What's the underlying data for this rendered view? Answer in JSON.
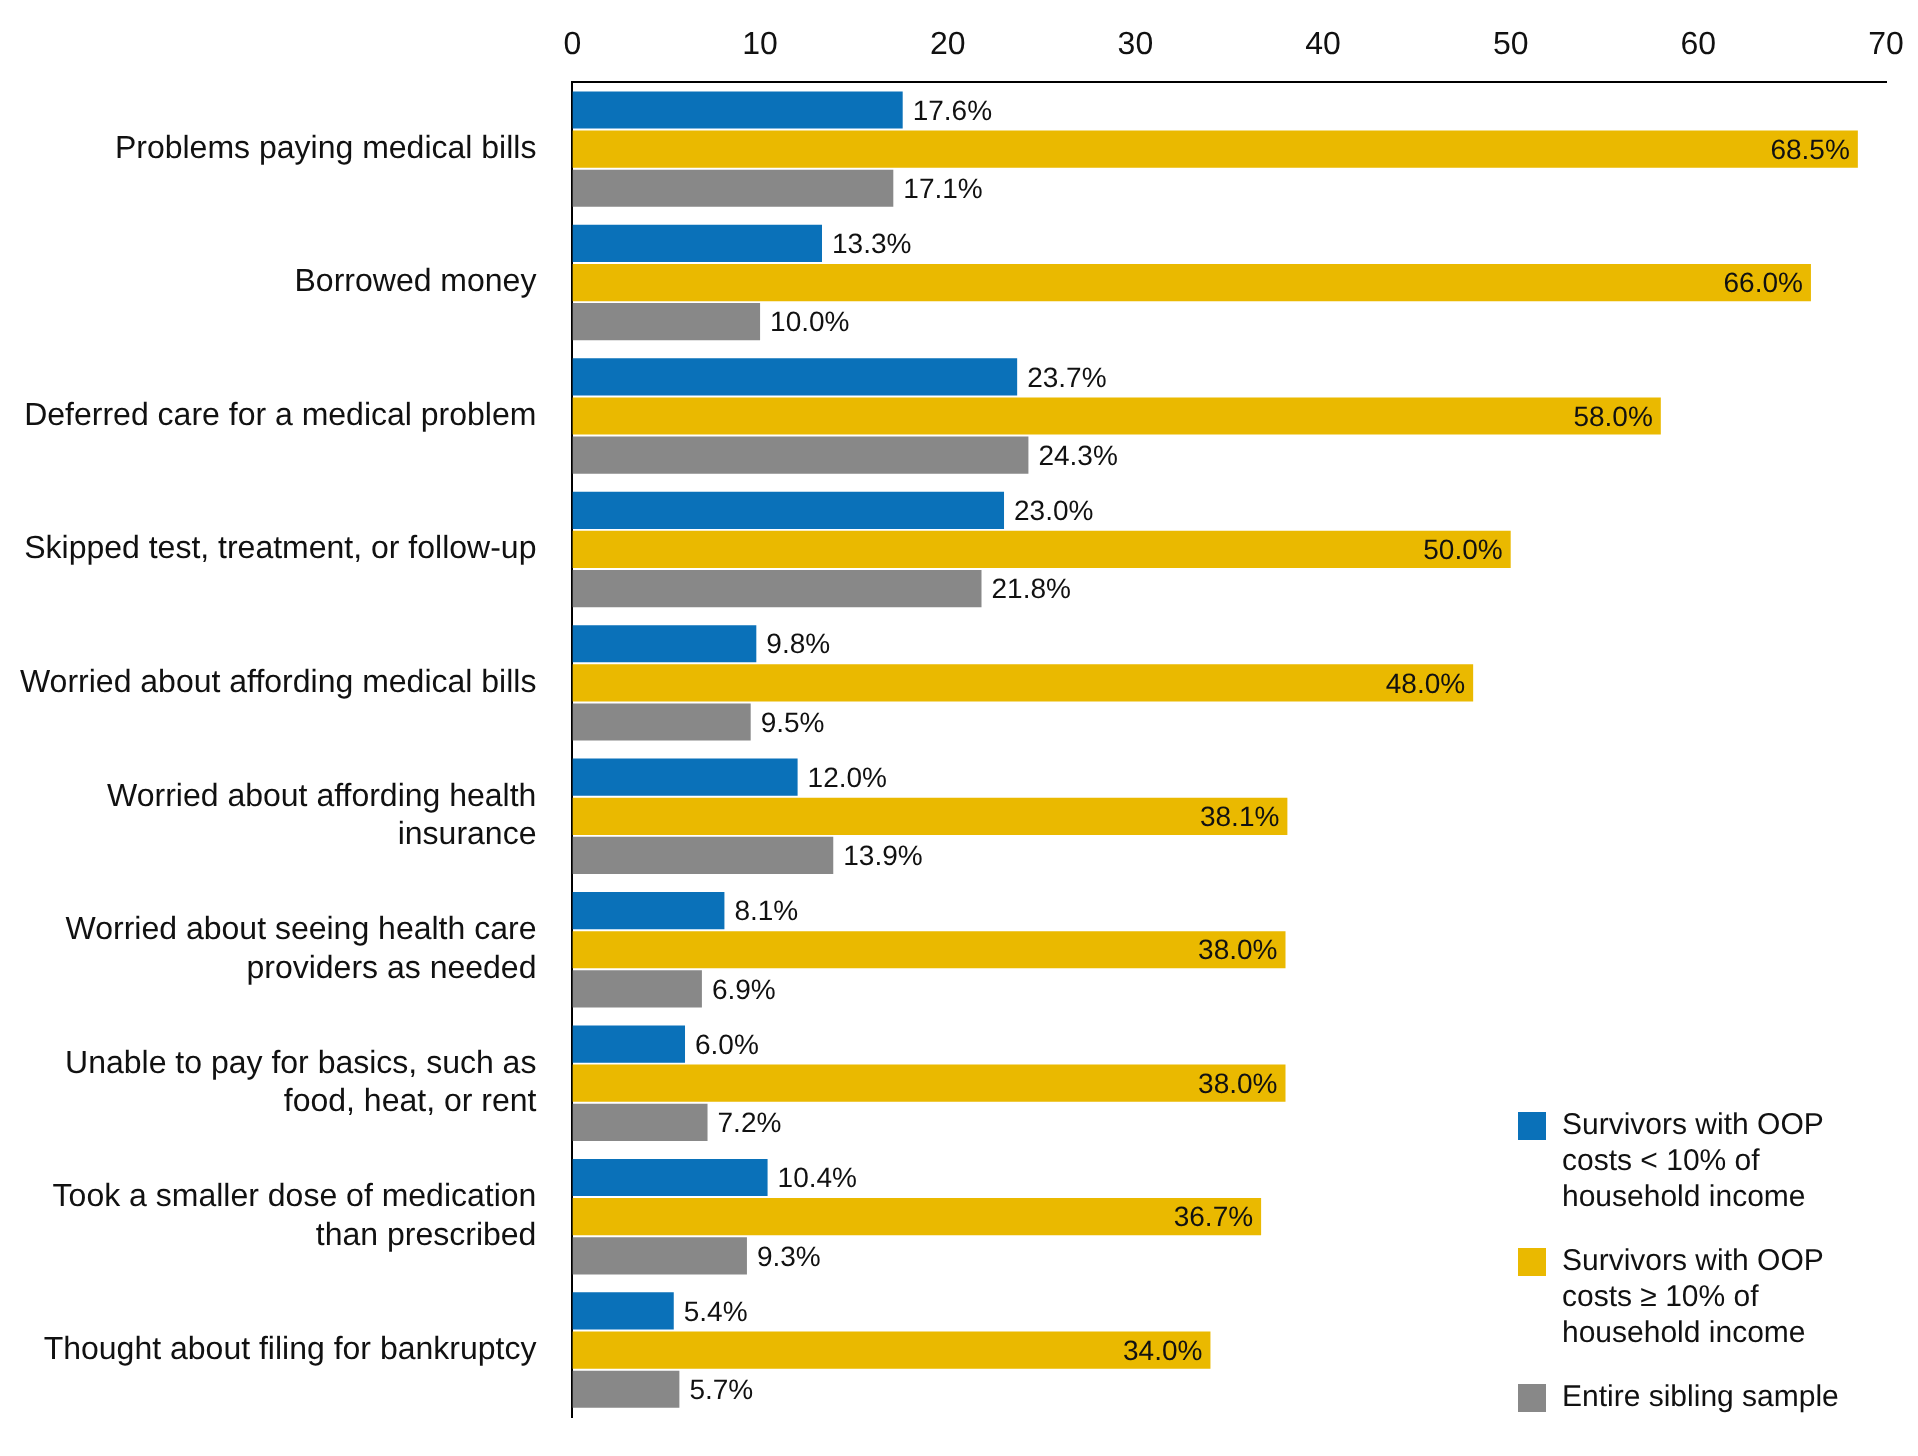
{
  "chart_data": {
    "type": "bar",
    "orientation": "horizontal",
    "categories": [
      "Problems paying medical bills",
      "Borrowed money",
      "Deferred care for a medical problem",
      "Skipped test, treatment, or follow-up",
      "Worried about affording medical bills",
      "Worried about affording health insurance",
      "Worried about seeing health care providers as needed",
      "Unable to pay for basics, such as food, heat, or rent",
      "Took a smaller dose of medication than prescribed",
      "Thought about filing for bankruptcy"
    ],
    "series": [
      {
        "name": "Survivors with OOP costs < 10% of household income",
        "color": "#0a71b9",
        "values": [
          17.6,
          13.3,
          23.7,
          23.0,
          9.8,
          12.0,
          8.1,
          6.0,
          10.4,
          5.4
        ],
        "value_labels": [
          "17.6%",
          "13.3%",
          "23.7%",
          "23.0%",
          "9.8%",
          "12.0%",
          "8.1%",
          "6.0%",
          "10.4%",
          "5.4%"
        ]
      },
      {
        "name": "Survivors with OOP costs ≥ 10% of household income",
        "color": "#eab900",
        "values": [
          68.5,
          66.0,
          58.0,
          50.0,
          48.0,
          38.1,
          38.0,
          38.0,
          36.7,
          34.0
        ],
        "value_labels": [
          "68.5%",
          "66.0%",
          "58.0%",
          "50.0%",
          "48.0%",
          "38.1%",
          "38.0%",
          "38.0%",
          "36.7%",
          "34.0%"
        ]
      },
      {
        "name": "Entire sibling sample",
        "color": "#888888",
        "values": [
          17.1,
          10.0,
          24.3,
          21.8,
          9.5,
          13.9,
          6.9,
          7.2,
          9.3,
          5.7
        ],
        "value_labels": [
          "17.1%",
          "10.0%",
          "24.3%",
          "21.8%",
          "9.5%",
          "13.9%",
          "6.9%",
          "7.2%",
          "9.3%",
          "5.7%"
        ]
      }
    ],
    "xlim": [
      0,
      70
    ],
    "xticks": [
      0,
      10,
      20,
      30,
      40,
      50,
      60,
      70
    ],
    "grid": false,
    "legend": "bottom right"
  }
}
